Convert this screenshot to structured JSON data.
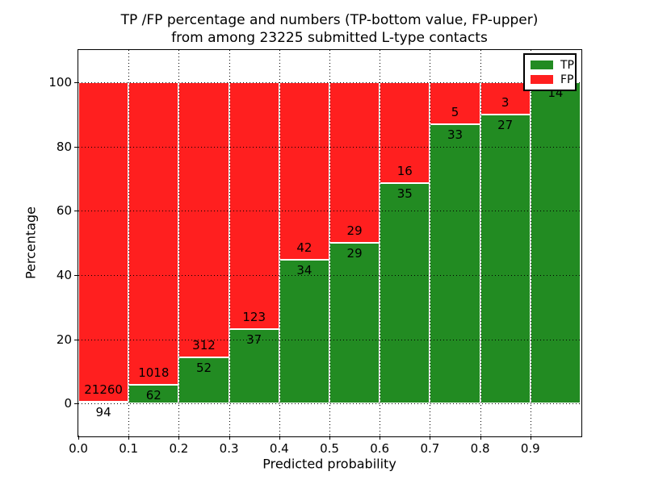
{
  "chart_data": {
    "type": "bar",
    "variant": "stacked-percentage",
    "title_line1": "TP /FP percentage and numbers (TP-bottom value, FP-upper)",
    "title_line2": "from among 23225 submitted L-type contacts",
    "xlabel": "Predicted probability",
    "ylabel": "Percentage",
    "xlim": [
      0.0,
      1.0
    ],
    "ylim": [
      -10,
      110
    ],
    "x_tick_labels": [
      "0.0",
      "0.1",
      "0.2",
      "0.3",
      "0.4",
      "0.5",
      "0.6",
      "0.7",
      "0.8",
      "0.9"
    ],
    "y_tick_values": [
      0,
      20,
      40,
      60,
      80,
      100
    ],
    "grid": "dotted",
    "legend_position": "upper right",
    "series": [
      {
        "name": "TP",
        "color": "#228B22"
      },
      {
        "name": "FP",
        "color": "#FF1F1F"
      }
    ],
    "bins": [
      {
        "range": "0.0-0.1",
        "tp": 94,
        "fp": 21260
      },
      {
        "range": "0.1-0.2",
        "tp": 62,
        "fp": 1018
      },
      {
        "range": "0.2-0.3",
        "tp": 52,
        "fp": 312
      },
      {
        "range": "0.3-0.4",
        "tp": 37,
        "fp": 123
      },
      {
        "range": "0.4-0.5",
        "tp": 34,
        "fp": 42
      },
      {
        "range": "0.5-0.6",
        "tp": 29,
        "fp": 29
      },
      {
        "range": "0.6-0.7",
        "tp": 35,
        "fp": 16
      },
      {
        "range": "0.7-0.8",
        "tp": 33,
        "fp": 5
      },
      {
        "range": "0.8-0.9",
        "tp": 27,
        "fp": 3
      },
      {
        "range": "0.9-1.0",
        "tp": 14,
        "fp": 0
      }
    ]
  }
}
